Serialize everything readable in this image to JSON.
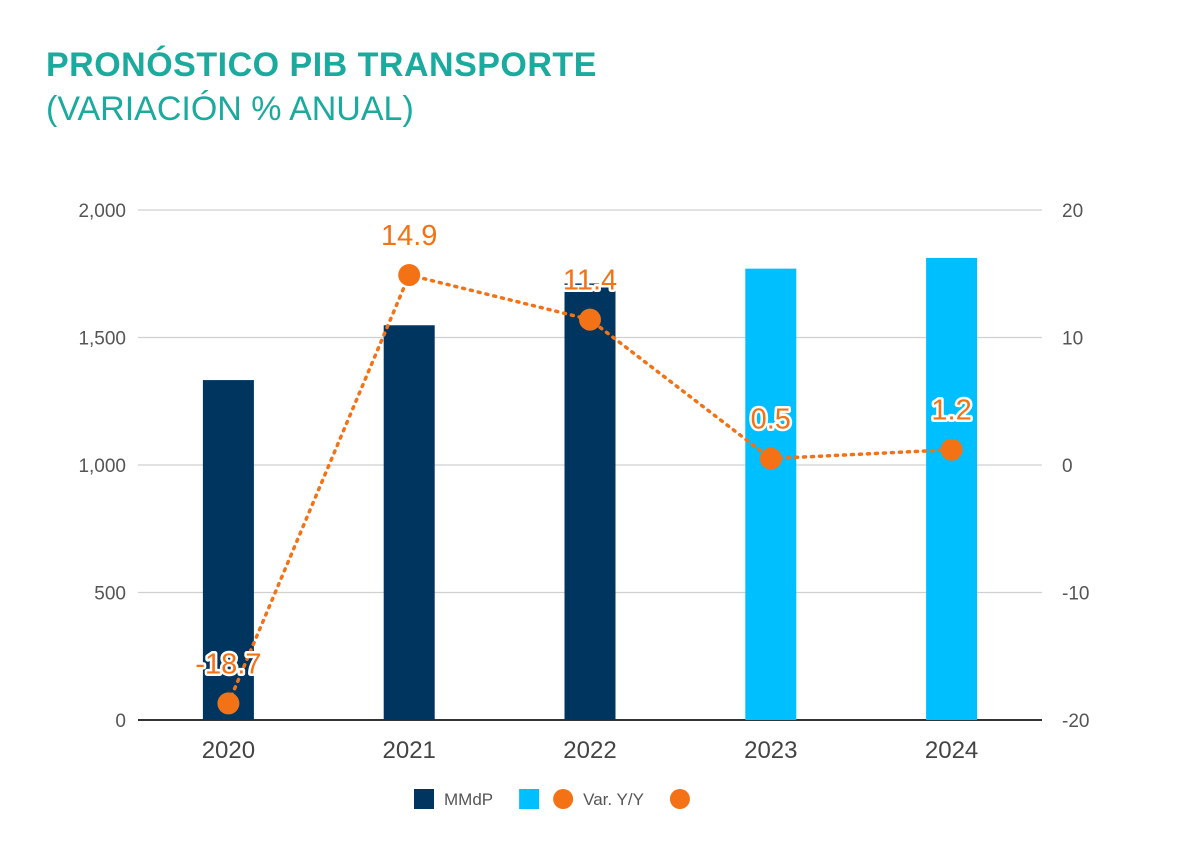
{
  "title": "PRONÓSTICO PIB TRANSPORTE",
  "subtitle": "(VARIACIÓN % ANUAL)",
  "chart_data": {
    "type": "bar",
    "combo": "bar+line",
    "categories": [
      "2020",
      "2021",
      "2022",
      "2023",
      "2024"
    ],
    "series": [
      {
        "name": "MMdP",
        "type": "bar",
        "axis": "left",
        "values": [
          1333,
          1548,
          1712,
          1770,
          1812
        ],
        "colors": [
          "#00355f",
          "#00355f",
          "#00355f",
          "#00bfff",
          "#00bfff"
        ]
      },
      {
        "name": "Var. Y/Y",
        "type": "line",
        "axis": "right",
        "style": "dotted",
        "color": "#f47216",
        "values": [
          -18.7,
          14.9,
          11.4,
          0.5,
          1.2
        ],
        "labels": [
          "-18.7",
          "14.9",
          "11.4",
          "0.5",
          "1.2"
        ]
      }
    ],
    "ylim_left": [
      0,
      2000
    ],
    "yticks_left": [
      "0",
      "500",
      "1,000",
      "1,500",
      "2,000"
    ],
    "ylim_right": [
      -20,
      20
    ],
    "yticks_right": [
      "-20",
      "-10",
      "0",
      "10",
      "20"
    ],
    "grid": true,
    "legend": {
      "position": "bottom",
      "entries": [
        {
          "label": "MMdP",
          "marker": "square",
          "color": "#00355f"
        },
        {
          "label": "",
          "marker": "square",
          "color": "#00bfff"
        },
        {
          "label": "Var. Y/Y",
          "marker": "circle",
          "color": "#f47216"
        },
        {
          "label": "",
          "marker": "circle",
          "color": "#f47216"
        }
      ]
    }
  }
}
